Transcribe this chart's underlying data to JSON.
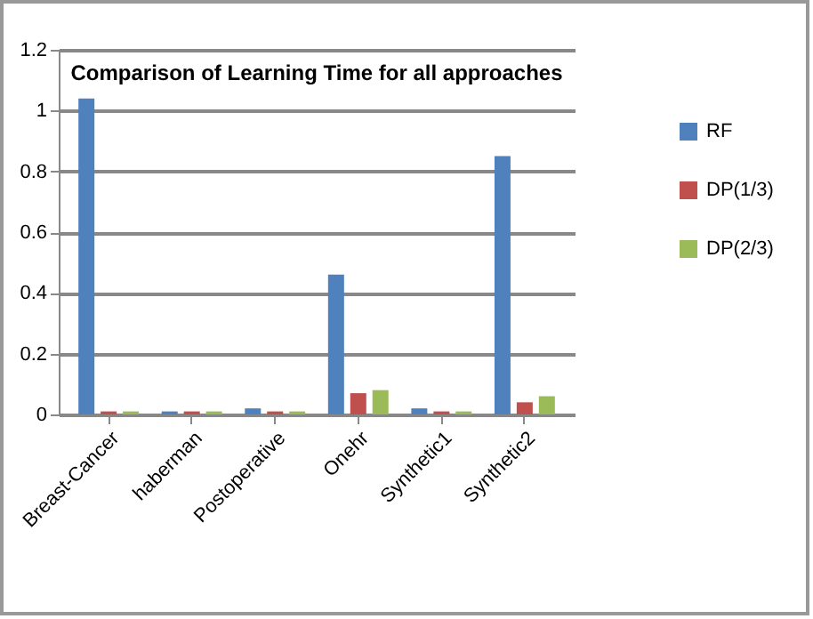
{
  "chart_data": {
    "type": "bar",
    "title": "Comparison of Learning  Time for all approaches",
    "categories": [
      "Breast-Cancer",
      "haberman",
      "Postoperative",
      "Onehr",
      "Synthetic1",
      "Synthetic2"
    ],
    "series": [
      {
        "name": "RF",
        "color": "#4f81bd",
        "values": [
          1.04,
          0.01,
          0.02,
          0.46,
          0.02,
          0.85
        ]
      },
      {
        "name": "DP(1/3)",
        "color": "#c0504d",
        "values": [
          0.01,
          0.01,
          0.01,
          0.07,
          0.01,
          0.04
        ]
      },
      {
        "name": "DP(2/3)",
        "color": "#9bbb59",
        "values": [
          0.01,
          0.01,
          0.01,
          0.08,
          0.01,
          0.06
        ]
      }
    ],
    "ylim": [
      0,
      1.2
    ],
    "yticks": [
      0,
      0.2,
      0.4,
      0.6,
      0.8,
      1,
      1.2
    ],
    "grid": "y",
    "legend": "right"
  }
}
